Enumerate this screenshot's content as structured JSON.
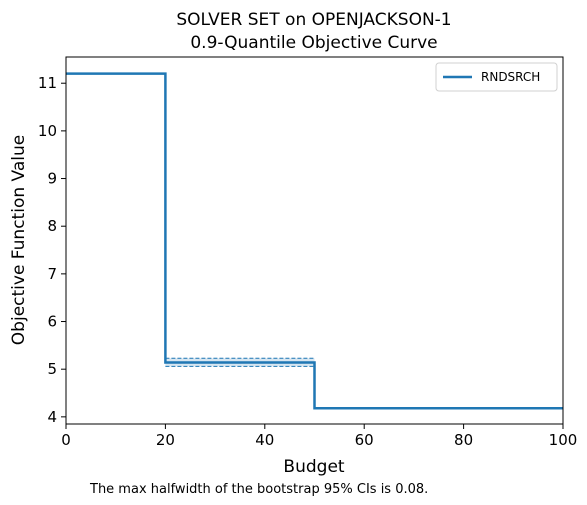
{
  "chart_data": {
    "type": "line",
    "title_lines": [
      "SOLVER SET on OPENJACKSON-1",
      "0.9-Quantile Objective Curve"
    ],
    "xlabel": "Budget",
    "ylabel": "Objective Function Value",
    "xlim": [
      0,
      100
    ],
    "ylim": [
      3.85,
      11.55
    ],
    "xticks": [
      0,
      20,
      40,
      60,
      80,
      100
    ],
    "yticks": [
      4,
      5,
      6,
      7,
      8,
      9,
      10,
      11
    ],
    "grid": false,
    "legend_position": "top-right",
    "series": [
      {
        "name": "RNDSRCH",
        "color": "#1f77b4",
        "step_points": [
          [
            0,
            11.2
          ],
          [
            20,
            11.2
          ],
          [
            20,
            5.14
          ],
          [
            50,
            5.14
          ],
          [
            50,
            4.18
          ],
          [
            100,
            4.18
          ]
        ],
        "ci_upper": [
          [
            20,
            5.23
          ],
          [
            50,
            5.23
          ]
        ],
        "ci_lower": [
          [
            20,
            5.06
          ],
          [
            50,
            5.06
          ]
        ]
      }
    ],
    "caption": "The max halfwidth of the bootstrap 95% CIs is 0.08."
  }
}
